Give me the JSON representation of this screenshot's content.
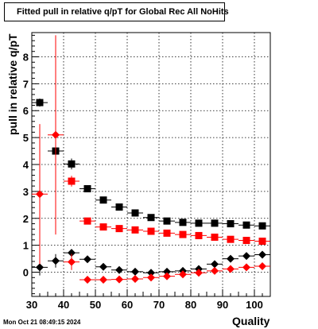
{
  "chart_data": {
    "type": "scatter",
    "title": "Fitted pull in relative q/pT for Global Rec All NoHits",
    "xlabel": "Quality",
    "ylabel": "pull in relative q/pT",
    "xlim": [
      30,
      105
    ],
    "ylim": [
      -0.9,
      8.9
    ],
    "xticks": [
      30,
      40,
      50,
      60,
      70,
      80,
      90,
      100
    ],
    "yticks": [
      0,
      1,
      2,
      3,
      4,
      5,
      6,
      7,
      8
    ],
    "grid": true,
    "timestamp": "Mon Oct 21 08:49:15 2024",
    "series": [
      {
        "marker": "square",
        "color": "#000000",
        "x": [
          32.5,
          37.5,
          42.5,
          47.5,
          52.5,
          57.5,
          62.5,
          67.5,
          72.5,
          77.5,
          82.5,
          87.5,
          92.5,
          97.5,
          102.5
        ],
        "y": [
          6.3,
          4.5,
          4.02,
          3.1,
          2.68,
          2.42,
          2.2,
          2.03,
          1.9,
          1.85,
          1.82,
          1.82,
          1.8,
          1.75,
          1.72
        ],
        "yerr": [
          0.15,
          0.18,
          0.2,
          0.08,
          0.06,
          0.05,
          0.05,
          0.05,
          0.05,
          0.05,
          0.05,
          0.05,
          0.05,
          0.05,
          0.05
        ]
      },
      {
        "marker": "square",
        "color": "#ff0000",
        "x": [
          42.5,
          47.5,
          52.5,
          57.5,
          62.5,
          67.5,
          72.5,
          77.5,
          82.5,
          87.5,
          92.5,
          97.5,
          102.5
        ],
        "y": [
          3.38,
          1.9,
          1.68,
          1.62,
          1.57,
          1.52,
          1.45,
          1.4,
          1.36,
          1.3,
          1.22,
          1.18,
          1.15
        ],
        "yerr": [
          0.2,
          0.08,
          0.06,
          0.05,
          0.05,
          0.05,
          0.05,
          0.05,
          0.05,
          0.05,
          0.05,
          0.05,
          0.05
        ]
      },
      {
        "marker": "diamond",
        "color": "#000000",
        "x": [
          32.5,
          37.5,
          42.5,
          47.5,
          52.5,
          57.5,
          62.5,
          67.5,
          72.5,
          77.5,
          82.5,
          87.5,
          92.5,
          97.5,
          102.5
        ],
        "y": [
          0.18,
          0.42,
          0.72,
          0.48,
          0.2,
          0.08,
          0.02,
          -0.02,
          0.02,
          0.05,
          0.12,
          0.3,
          0.5,
          0.6,
          0.65
        ],
        "yerr": [
          0.3,
          0.25,
          0.12,
          0.08,
          0.06,
          0.05,
          0.05,
          0.05,
          0.05,
          0.05,
          0.05,
          0.05,
          0.05,
          0.05,
          0.05
        ]
      },
      {
        "marker": "diamond",
        "color": "#ff0000",
        "x": [
          32.5,
          37.5,
          42.5,
          47.5,
          52.5,
          57.5,
          62.5,
          67.5,
          72.5,
          77.5,
          82.5,
          87.5,
          92.5,
          97.5,
          102.5
        ],
        "y": [
          2.9,
          5.1,
          0.38,
          -0.28,
          -0.28,
          -0.27,
          -0.25,
          -0.2,
          -0.15,
          -0.08,
          -0.02,
          0.05,
          0.12,
          0.18,
          0.22
        ],
        "yerr": [
          2.6,
          3.7,
          0.3,
          0.06,
          0.05,
          0.05,
          0.05,
          0.05,
          0.05,
          0.05,
          0.05,
          0.05,
          0.05,
          0.05,
          0.05
        ]
      }
    ]
  }
}
